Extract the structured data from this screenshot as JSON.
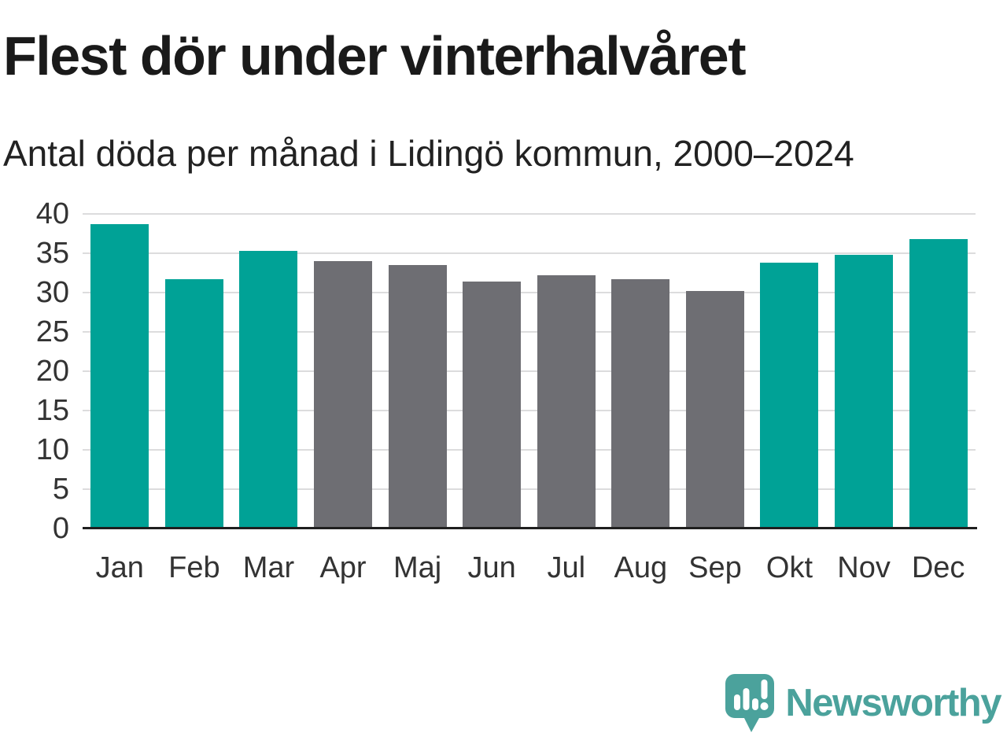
{
  "chart_data": {
    "type": "bar",
    "title": "Flest dör under vinterhalvåret",
    "subtitle": "Antal döda per månad i Lidingö kommun, 2000–2024",
    "categories": [
      "Jan",
      "Feb",
      "Mar",
      "Apr",
      "Maj",
      "Jun",
      "Jul",
      "Aug",
      "Sep",
      "Okt",
      "Nov",
      "Dec"
    ],
    "values": [
      38.7,
      31.7,
      35.3,
      34.0,
      33.5,
      31.4,
      32.2,
      31.7,
      30.2,
      33.8,
      34.8,
      36.8
    ],
    "bar_colors": [
      "#00a296",
      "#00a296",
      "#00a296",
      "#6e6e73",
      "#6e6e73",
      "#6e6e73",
      "#6e6e73",
      "#6e6e73",
      "#6e6e73",
      "#00a296",
      "#00a296",
      "#00a296"
    ],
    "xlabel": "",
    "ylabel": "",
    "ylim": [
      0,
      40
    ],
    "yticks": [
      0,
      5,
      10,
      15,
      20,
      25,
      30,
      35,
      40
    ],
    "grid": "horizontal",
    "legend": "none",
    "style": {
      "highlight_color": "#00a296",
      "muted_color": "#6e6e73",
      "grid_color": "#dcdcdd",
      "axis_color": "#1f1f1f",
      "tick_text_color": "#333333",
      "title_color": "#1a1a1a",
      "background": "#ffffff"
    }
  },
  "branding": {
    "wordmark": "Newsworthy",
    "logo_icon": "speech-bubble-bar-chart-exclamation",
    "logo_color": "#4ba29c"
  }
}
